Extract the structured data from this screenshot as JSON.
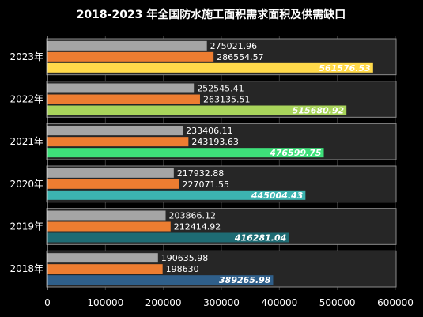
{
  "chart_data": {
    "type": "bar",
    "orientation": "horizontal",
    "title": "2018-2023 年全国防水施工面积需求面积及供需缺口",
    "xlabel": "",
    "ylabel": "",
    "categories": [
      "2023年",
      "2022年",
      "2021年",
      "2020年",
      "2019年",
      "2018年"
    ],
    "xlim": [
      0,
      600000
    ],
    "x_ticks": [
      "0",
      "100000",
      "200000",
      "300000",
      "400000",
      "500000",
      "600000"
    ],
    "grid": true,
    "legend": "none",
    "series": [
      {
        "values": [
          275021.96,
          252545.41,
          233406.11,
          217932.88,
          203866.12,
          190635.98
        ],
        "labels": [
          "275021.96",
          "252545.41",
          "233406.11",
          "217932.88",
          "203866.12",
          "190635.98"
        ],
        "color": "#a5a5a5"
      },
      {
        "values": [
          286554.57,
          263135.51,
          243193.63,
          227071.55,
          212414.92,
          198630
        ],
        "labels": [
          "286554.57",
          "263135.51",
          "243193.63",
          "227071.55",
          "212414.92",
          "198630"
        ],
        "color": "#ed7d31"
      },
      {
        "values": [
          561576.53,
          515680.92,
          476599.75,
          445004.43,
          416281.04,
          389265.98
        ],
        "labels": [
          "561576.53",
          "515680.92",
          "476599.75",
          "445004.43",
          "416281.04",
          "389265.98"
        ],
        "colors": [
          "#ffd94a",
          "#a9d45b",
          "#3ee07a",
          "#3cb3b0",
          "#1e6b73",
          "#2f5f8a"
        ]
      }
    ]
  }
}
